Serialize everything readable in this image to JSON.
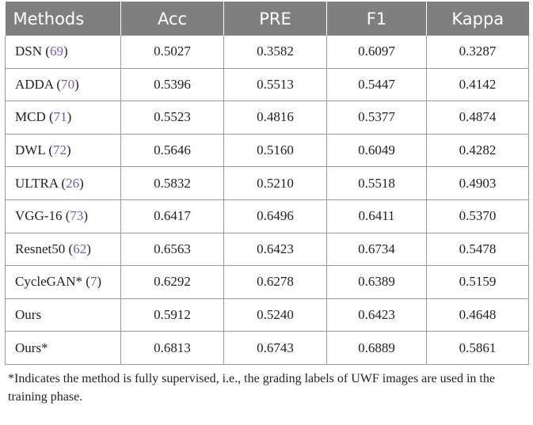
{
  "table": {
    "headers": [
      "Methods",
      "Acc",
      "PRE",
      "F1",
      "Kappa"
    ],
    "rows": [
      {
        "method": "DSN",
        "ref": "69",
        "values": [
          "0.5027",
          "0.3582",
          "0.6097",
          "0.3287"
        ]
      },
      {
        "method": "ADDA",
        "ref": "70",
        "values": [
          "0.5396",
          "0.5513",
          "0.5447",
          "0.4142"
        ]
      },
      {
        "method": "MCD",
        "ref": "71",
        "values": [
          "0.5523",
          "0.4816",
          "0.5377",
          "0.4874"
        ]
      },
      {
        "method": "DWL",
        "ref": "72",
        "values": [
          "0.5646",
          "0.5160",
          "0.6049",
          "0.4282"
        ]
      },
      {
        "method": "ULTRA",
        "ref": "26",
        "values": [
          "0.5832",
          "0.5210",
          "0.5518",
          "0.4903"
        ]
      },
      {
        "method": "VGG-16",
        "ref": "73",
        "values": [
          "0.6417",
          "0.6496",
          "0.6411",
          "0.5370"
        ]
      },
      {
        "method": "Resnet50",
        "ref": "62",
        "values": [
          "0.6563",
          "0.6423",
          "0.6734",
          "0.5478"
        ]
      },
      {
        "method": "CycleGAN*",
        "ref": "7",
        "values": [
          "0.6292",
          "0.6278",
          "0.6389",
          "0.5159"
        ]
      },
      {
        "method": "Ours",
        "ref": "",
        "values": [
          "0.5912",
          "0.5240",
          "0.6423",
          "0.4648"
        ]
      },
      {
        "method": "Ours*",
        "ref": "",
        "values": [
          "0.6813",
          "0.6743",
          "0.6889",
          "0.5861"
        ]
      }
    ]
  },
  "footnote": "*Indicates the method is fully supervised, i.e., the grading labels of UWF images are used in the training phase."
}
